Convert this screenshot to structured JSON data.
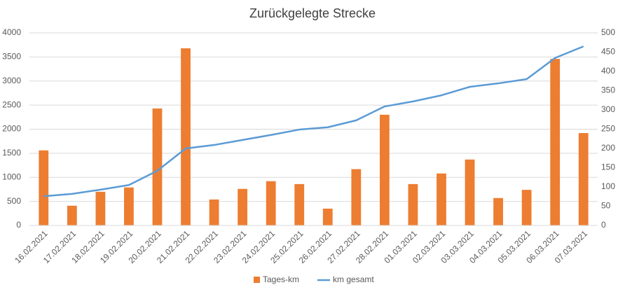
{
  "chart_data": {
    "type": "bar_line",
    "title": "Zurückgelegte Strecke",
    "categories": [
      "16.02.2021",
      "17.02.2021",
      "18.02.2021",
      "19.02.2021",
      "20.02.2021",
      "21.02.2021",
      "22.02.2021",
      "23.02.2021",
      "24.02.2021",
      "25.02.2021",
      "26.02.2021",
      "27.02.2021",
      "28.02.2021",
      "01.03.2021",
      "02.03.2021",
      "03.03.2021",
      "04.03.2021",
      "05.03.2021",
      "06.03.2021",
      "07.03.2021"
    ],
    "series": [
      {
        "name": "Tages-km",
        "type": "bar",
        "color": "#ED7D31",
        "values": [
          1560,
          410,
          700,
          790,
          2430,
          3680,
          540,
          760,
          920,
          860,
          350,
          1170,
          2300,
          860,
          1080,
          1370,
          570,
          740,
          3460,
          1920
        ]
      },
      {
        "name": "km gesamt",
        "type": "line",
        "axis": "y2",
        "color": "#5B9BD5",
        "values": [
          76,
          82,
          93,
          105,
          142,
          200,
          209,
          222,
          235,
          249,
          255,
          273,
          309,
          322,
          338,
          360,
          369,
          380,
          435,
          465
        ]
      }
    ],
    "ylim": [
      0,
      4000
    ],
    "yticks": [
      0,
      500,
      1000,
      1500,
      2000,
      2500,
      3000,
      3500,
      4000
    ],
    "y2lim": [
      0,
      500
    ],
    "y2ticks": [
      0,
      50,
      100,
      150,
      200,
      250,
      300,
      350,
      400,
      450,
      500
    ],
    "grid": true,
    "legend": "bottom"
  }
}
